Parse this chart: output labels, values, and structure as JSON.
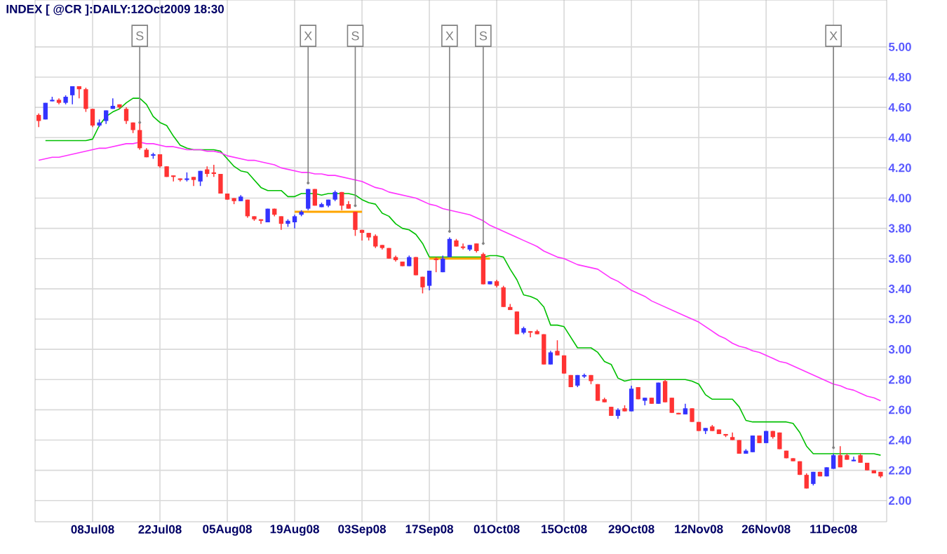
{
  "chart_data": {
    "type": "candlestick",
    "title": "INDEX [ @CR ]:DAILY:12Oct2009 18:30",
    "categories": [
      null,
      null,
      null,
      null,
      null,
      null,
      null,
      null,
      "08Jul08",
      null,
      null,
      null,
      null,
      null,
      null,
      null,
      null,
      null,
      "22Jul08",
      null,
      null,
      null,
      null,
      null,
      null,
      null,
      null,
      null,
      "05Aug08",
      null,
      null,
      null,
      null,
      null,
      null,
      null,
      null,
      null,
      "19Aug08",
      null,
      null,
      null,
      null,
      null,
      null,
      null,
      null,
      null,
      "03Sep08",
      null,
      null,
      null,
      null,
      null,
      null,
      null,
      null,
      null,
      "17Sep08",
      null,
      null,
      null,
      null,
      null,
      null,
      null,
      null,
      null,
      "01Oct08",
      null,
      null,
      null,
      null,
      null,
      null,
      null,
      null,
      null,
      "15Oct08",
      null,
      null,
      null,
      null,
      null,
      null,
      null,
      null,
      null,
      "29Oct08",
      null,
      null,
      null,
      null,
      null,
      null,
      null,
      null,
      null,
      "12Nov08",
      null,
      null,
      null,
      null,
      null,
      null,
      null,
      null,
      null,
      "26Nov08",
      null,
      null,
      null,
      null,
      null,
      null,
      null,
      null,
      null,
      "11Dec08",
      null,
      null,
      null,
      null,
      null,
      null,
      null
    ],
    "ohlc": [
      [
        4.55,
        4.56,
        4.47,
        4.51
      ],
      [
        4.52,
        4.63,
        4.52,
        4.63
      ],
      [
        4.64,
        4.67,
        4.64,
        4.65
      ],
      [
        4.65,
        4.66,
        4.62,
        4.63
      ],
      [
        4.63,
        4.68,
        4.62,
        4.67
      ],
      [
        4.68,
        4.74,
        4.62,
        4.74
      ],
      [
        4.74,
        4.74,
        4.66,
        4.72
      ],
      [
        4.72,
        4.73,
        4.57,
        4.59
      ],
      [
        4.59,
        4.59,
        4.47,
        4.48
      ],
      [
        4.48,
        4.52,
        4.47,
        4.5
      ],
      [
        4.51,
        4.58,
        4.49,
        4.58
      ],
      [
        4.59,
        4.66,
        4.59,
        4.61
      ],
      [
        4.62,
        4.62,
        4.59,
        4.6
      ],
      [
        4.59,
        4.6,
        4.49,
        4.51
      ],
      [
        4.5,
        4.5,
        4.43,
        4.45
      ],
      [
        4.45,
        4.5,
        4.32,
        4.33
      ],
      [
        4.32,
        4.33,
        4.27,
        4.27
      ],
      [
        4.28,
        4.3,
        4.26,
        4.29
      ],
      [
        4.29,
        4.29,
        4.2,
        4.21
      ],
      [
        4.21,
        4.21,
        4.14,
        4.14
      ],
      [
        4.15,
        4.15,
        4.11,
        4.14
      ],
      [
        4.13,
        4.13,
        4.11,
        4.12
      ],
      [
        4.12,
        4.17,
        4.11,
        4.13
      ],
      [
        4.14,
        4.14,
        4.08,
        4.12
      ],
      [
        4.11,
        4.18,
        4.08,
        4.18
      ],
      [
        4.19,
        4.21,
        4.14,
        4.16
      ],
      [
        4.17,
        4.22,
        4.14,
        4.16
      ],
      [
        4.16,
        4.16,
        4.03,
        4.03
      ],
      [
        4.03,
        4.03,
        3.99,
        3.99
      ],
      [
        4.0,
        4.0,
        3.96,
        3.98
      ],
      [
        3.98,
        4.02,
        3.98,
        4.01
      ],
      [
        3.99,
        3.99,
        3.87,
        3.88
      ],
      [
        3.88,
        3.88,
        3.85,
        3.86
      ],
      [
        3.86,
        3.86,
        3.83,
        3.85
      ],
      [
        3.84,
        3.93,
        3.84,
        3.93
      ],
      [
        3.93,
        3.93,
        3.88,
        3.89
      ],
      [
        3.88,
        3.88,
        3.79,
        3.83
      ],
      [
        3.83,
        3.86,
        3.81,
        3.85
      ],
      [
        3.84,
        3.89,
        3.8,
        3.88
      ],
      [
        3.89,
        3.92,
        3.88,
        3.91
      ],
      [
        3.93,
        4.06,
        3.92,
        4.06
      ],
      [
        4.06,
        4.06,
        3.95,
        3.95
      ],
      [
        3.94,
        3.97,
        3.94,
        3.96
      ],
      [
        3.95,
        3.99,
        3.94,
        3.99
      ],
      [
        3.99,
        4.05,
        3.98,
        4.04
      ],
      [
        4.04,
        4.04,
        3.92,
        3.95
      ],
      [
        3.96,
        3.98,
        3.93,
        3.93
      ],
      [
        3.91,
        3.91,
        3.75,
        3.79
      ],
      [
        3.79,
        3.79,
        3.72,
        3.77
      ],
      [
        3.77,
        3.77,
        3.72,
        3.74
      ],
      [
        3.75,
        3.76,
        3.67,
        3.68
      ],
      [
        3.69,
        3.69,
        3.66,
        3.67
      ],
      [
        3.67,
        3.67,
        3.6,
        3.6
      ],
      [
        3.61,
        3.62,
        3.58,
        3.59
      ],
      [
        3.58,
        3.58,
        3.55,
        3.55
      ],
      [
        3.55,
        3.62,
        3.55,
        3.61
      ],
      [
        3.61,
        3.61,
        3.49,
        3.49
      ],
      [
        3.48,
        3.48,
        3.37,
        3.41
      ],
      [
        3.42,
        3.52,
        3.39,
        3.52
      ],
      [
        3.6,
        3.61,
        3.51,
        3.59
      ],
      [
        3.51,
        3.62,
        3.51,
        3.6
      ],
      [
        3.61,
        3.74,
        3.61,
        3.73
      ],
      [
        3.72,
        3.73,
        3.68,
        3.68
      ],
      [
        3.68,
        3.7,
        3.66,
        3.67
      ],
      [
        3.66,
        3.69,
        3.65,
        3.69
      ],
      [
        3.7,
        3.7,
        3.64,
        3.65
      ],
      [
        3.63,
        3.64,
        3.43,
        3.43
      ],
      [
        3.43,
        3.45,
        3.43,
        3.45
      ],
      [
        3.45,
        3.46,
        3.41,
        3.42
      ],
      [
        3.41,
        3.42,
        3.28,
        3.28
      ],
      [
        3.28,
        3.3,
        3.26,
        3.26
      ],
      [
        3.25,
        3.25,
        3.1,
        3.1
      ],
      [
        3.11,
        3.15,
        3.1,
        3.14
      ],
      [
        3.12,
        3.12,
        3.08,
        3.11
      ],
      [
        3.12,
        3.13,
        3.1,
        3.1
      ],
      [
        3.1,
        3.1,
        2.9,
        2.9
      ],
      [
        2.9,
        2.99,
        2.9,
        2.98
      ],
      [
        2.99,
        3.06,
        2.96,
        2.96
      ],
      [
        2.96,
        2.96,
        2.84,
        2.84
      ],
      [
        2.83,
        2.83,
        2.75,
        2.75
      ],
      [
        2.76,
        2.83,
        2.75,
        2.83
      ],
      [
        2.82,
        2.84,
        2.81,
        2.83
      ],
      [
        2.83,
        2.83,
        2.77,
        2.79
      ],
      [
        2.77,
        2.77,
        2.66,
        2.66
      ],
      [
        2.67,
        2.68,
        2.65,
        2.65
      ],
      [
        2.62,
        2.62,
        2.56,
        2.56
      ],
      [
        2.56,
        2.61,
        2.54,
        2.6
      ],
      [
        2.61,
        2.63,
        2.59,
        2.59
      ],
      [
        2.59,
        2.76,
        2.59,
        2.74
      ],
      [
        2.75,
        2.75,
        2.67,
        2.67
      ],
      [
        2.66,
        2.68,
        2.63,
        2.68
      ],
      [
        2.68,
        2.68,
        2.64,
        2.64
      ],
      [
        2.64,
        2.78,
        2.64,
        2.78
      ],
      [
        2.79,
        2.8,
        2.65,
        2.65
      ],
      [
        2.68,
        2.68,
        2.58,
        2.58
      ],
      [
        2.58,
        2.58,
        2.57,
        2.57
      ],
      [
        2.57,
        2.64,
        2.57,
        2.61
      ],
      [
        2.61,
        2.61,
        2.52,
        2.52
      ],
      [
        2.52,
        2.52,
        2.46,
        2.46
      ],
      [
        2.46,
        2.48,
        2.44,
        2.48
      ],
      [
        2.49,
        2.5,
        2.46,
        2.46
      ],
      [
        2.47,
        2.47,
        2.44,
        2.44
      ],
      [
        2.44,
        2.44,
        2.42,
        2.43
      ],
      [
        2.42,
        2.45,
        2.4,
        2.4
      ],
      [
        2.4,
        2.4,
        2.31,
        2.31
      ],
      [
        2.31,
        2.34,
        2.31,
        2.33
      ],
      [
        2.32,
        2.43,
        2.32,
        2.43
      ],
      [
        2.43,
        2.43,
        2.38,
        2.38
      ],
      [
        2.38,
        2.46,
        2.38,
        2.46
      ],
      [
        2.46,
        2.46,
        2.41,
        2.42
      ],
      [
        2.45,
        2.45,
        2.34,
        2.34
      ],
      [
        2.33,
        2.33,
        2.28,
        2.28
      ],
      [
        2.28,
        2.28,
        2.26,
        2.26
      ],
      [
        2.26,
        2.26,
        2.17,
        2.17
      ],
      [
        2.17,
        2.18,
        2.08,
        2.08
      ],
      [
        2.11,
        2.19,
        2.1,
        2.19
      ],
      [
        2.19,
        2.19,
        2.16,
        2.16
      ],
      [
        2.16,
        2.22,
        2.16,
        2.22
      ],
      [
        2.21,
        2.31,
        2.21,
        2.3
      ],
      [
        2.3,
        2.36,
        2.22,
        2.22
      ],
      [
        2.3,
        2.31,
        2.27,
        2.27
      ],
      [
        2.26,
        2.29,
        2.26,
        2.27
      ],
      [
        2.3,
        2.31,
        2.25,
        2.25
      ],
      [
        2.25,
        2.25,
        2.2,
        2.2
      ],
      [
        2.2,
        2.2,
        2.18,
        2.18
      ],
      [
        2.19,
        2.19,
        2.15,
        2.16
      ]
    ],
    "colors": [
      "#ff3333",
      "#3333ff",
      "#3333ff",
      "#ff3333",
      "#3333ff",
      "#3333ff",
      "#ff3333",
      "#ff3333",
      "#ff3333",
      "#3333ff",
      "#3333ff",
      "#3333ff",
      "#ff3333",
      "#ff3333",
      "#ff3333",
      "#ff3333",
      "#ff3333",
      "#3333ff",
      "#ff3333",
      "#ff3333",
      "#ff3333",
      "#ff3333",
      "#3333ff",
      "#ff3333",
      "#3333ff",
      "#ff3333",
      "#ff3333",
      "#ff3333",
      "#ff3333",
      "#ff3333",
      "#3333ff",
      "#ff3333",
      "#ff3333",
      "#ff3333",
      "#3333ff",
      "#ff3333",
      "#ff3333",
      "#3333ff",
      "#3333ff",
      "#3333ff",
      "#3333ff",
      "#ff3333",
      "#3333ff",
      "#3333ff",
      "#3333ff",
      "#ff3333",
      "#ff3333",
      "#ff3333",
      "#ff3333",
      "#ff3333",
      "#ff3333",
      "#ff3333",
      "#ff3333",
      "#ff3333",
      "#ff3333",
      "#3333ff",
      "#ff3333",
      "#ff3333",
      "#3333ff",
      "#ff3333",
      "#3333ff",
      "#3333ff",
      "#ff3333",
      "#ff3333",
      "#3333ff",
      "#ff3333",
      "#ff3333",
      "#3333ff",
      "#ff3333",
      "#ff3333",
      "#ff3333",
      "#ff3333",
      "#3333ff",
      "#ff3333",
      "#ff3333",
      "#ff3333",
      "#3333ff",
      "#ff3333",
      "#ff3333",
      "#ff3333",
      "#3333ff",
      "#3333ff",
      "#ff3333",
      "#ff3333",
      "#ff3333",
      "#ff3333",
      "#3333ff",
      "#ff3333",
      "#3333ff",
      "#ff3333",
      "#3333ff",
      "#ff3333",
      "#3333ff",
      "#ff3333",
      "#ff3333",
      "#ff3333",
      "#3333ff",
      "#ff3333",
      "#ff3333",
      "#3333ff",
      "#ff3333",
      "#ff3333",
      "#ff3333",
      "#ff3333",
      "#ff3333",
      "#3333ff",
      "#3333ff",
      "#ff3333",
      "#3333ff",
      "#ff3333",
      "#ff3333",
      "#ff3333",
      "#ff3333",
      "#ff3333",
      "#ff3333",
      "#3333ff",
      "#ff3333",
      "#3333ff",
      "#3333ff",
      "#ff3333",
      "#ff3333",
      "#3333ff",
      "#ff3333",
      "#ff3333",
      "#ff3333",
      "#ff3333"
    ],
    "series": [
      {
        "type": "line",
        "color": "#00c000",
        "values": [
          null,
          4.38,
          4.38,
          4.38,
          4.38,
          4.38,
          4.38,
          4.38,
          4.39,
          4.48,
          4.54,
          4.57,
          4.59,
          4.63,
          4.66,
          4.66,
          4.62,
          4.54,
          4.5,
          4.48,
          4.41,
          4.35,
          4.33,
          4.32,
          4.32,
          4.32,
          4.32,
          4.31,
          4.26,
          4.21,
          4.18,
          4.17,
          4.12,
          4.07,
          4.05,
          4.05,
          4.05,
          4.01,
          4.01,
          4.03,
          4.03,
          4.03,
          4.02,
          4.03,
          4.03,
          4.03,
          4.03,
          4.02,
          3.99,
          3.97,
          3.96,
          3.9,
          3.88,
          3.83,
          3.8,
          3.79,
          3.76,
          3.7,
          3.61,
          3.61,
          3.61,
          3.61,
          3.61,
          3.61,
          3.61,
          3.61,
          3.61,
          3.62,
          3.62,
          3.61,
          3.53,
          3.46,
          3.36,
          3.35,
          3.33,
          3.28,
          3.16,
          3.16,
          3.15,
          3.08,
          3.01,
          3.01,
          3.01,
          2.98,
          2.92,
          2.9,
          2.81,
          2.79,
          2.8,
          2.8,
          2.8,
          2.8,
          2.8,
          2.8,
          2.8,
          2.8,
          2.8,
          2.79,
          2.77,
          2.7,
          2.67,
          2.67,
          2.67,
          2.67,
          2.62,
          2.53,
          2.52,
          2.52,
          2.52,
          2.52,
          2.52,
          2.52,
          2.51,
          2.45,
          2.36,
          2.31,
          2.31,
          2.31,
          2.31,
          2.31,
          2.31,
          2.31,
          2.31,
          2.31,
          2.31,
          2.3
        ]
      },
      {
        "type": "line",
        "color": "#ff33ff",
        "values": [
          4.25,
          4.26,
          4.27,
          4.27,
          4.28,
          4.29,
          4.3,
          4.31,
          4.32,
          4.33,
          4.33,
          4.34,
          4.35,
          4.36,
          4.36,
          4.37,
          4.36,
          4.36,
          4.35,
          4.34,
          4.34,
          4.33,
          4.32,
          4.32,
          4.32,
          4.31,
          4.31,
          4.3,
          4.28,
          4.27,
          4.26,
          4.25,
          4.25,
          4.24,
          4.23,
          4.22,
          4.2,
          4.19,
          4.18,
          4.17,
          4.17,
          4.16,
          4.16,
          4.15,
          4.15,
          4.14,
          4.13,
          4.12,
          4.11,
          4.09,
          4.07,
          4.06,
          4.04,
          4.03,
          4.02,
          4.01,
          4.0,
          3.98,
          3.96,
          3.95,
          3.93,
          3.92,
          3.91,
          3.9,
          3.89,
          3.87,
          3.85,
          3.82,
          3.8,
          3.78,
          3.76,
          3.74,
          3.72,
          3.7,
          3.68,
          3.65,
          3.63,
          3.61,
          3.6,
          3.58,
          3.56,
          3.55,
          3.54,
          3.53,
          3.5,
          3.47,
          3.45,
          3.42,
          3.39,
          3.37,
          3.35,
          3.32,
          3.3,
          3.28,
          3.26,
          3.24,
          3.22,
          3.2,
          3.18,
          3.15,
          3.12,
          3.09,
          3.07,
          3.04,
          3.02,
          3.01,
          2.99,
          2.98,
          2.96,
          2.94,
          2.92,
          2.91,
          2.89,
          2.87,
          2.85,
          2.83,
          2.81,
          2.79,
          2.77,
          2.76,
          2.74,
          2.73,
          2.71,
          2.69,
          2.68,
          2.66
        ]
      },
      {
        "type": "line",
        "color": "#ffa500",
        "values": [
          null,
          null,
          null,
          null,
          null,
          null,
          null,
          null,
          null,
          null,
          null,
          null,
          null,
          null,
          null,
          null,
          null,
          null,
          null,
          null,
          null,
          null,
          null,
          null,
          null,
          null,
          null,
          null,
          null,
          null,
          null,
          null,
          null,
          null,
          null,
          null,
          null,
          null,
          3.91,
          3.91,
          3.91,
          3.91,
          3.91,
          3.91,
          3.91,
          3.91,
          3.91,
          3.91,
          3.91,
          null,
          null,
          null,
          null,
          null,
          null,
          null,
          null,
          null,
          3.6,
          3.6,
          3.6,
          3.6,
          3.6,
          3.6,
          3.6,
          3.6,
          3.6,
          3.6,
          null,
          null,
          null,
          null,
          null,
          null,
          null,
          null,
          null,
          null,
          null,
          null,
          null,
          null,
          null,
          null,
          null,
          null,
          null,
          null,
          null,
          null,
          null,
          null,
          null,
          null,
          null,
          null,
          null,
          null,
          null,
          null,
          null,
          null,
          null,
          null,
          null,
          null,
          null,
          null,
          null,
          null,
          null,
          null,
          null,
          null,
          null,
          null,
          null,
          null,
          null,
          null,
          null,
          null,
          null,
          null,
          null,
          null
        ]
      },
      {
        "type": "scatter",
        "color": "#808080",
        "values": [
          null,
          null,
          null,
          null,
          null,
          null,
          null,
          null,
          null,
          null,
          null,
          null,
          null,
          null,
          null,
          4.5,
          null,
          null,
          null,
          null,
          null,
          null,
          null,
          null,
          null,
          null,
          null,
          null,
          null,
          null,
          null,
          null,
          null,
          null,
          null,
          null,
          null,
          null,
          null,
          null,
          4.1,
          null,
          null,
          null,
          null,
          null,
          null,
          3.95,
          null,
          null,
          null,
          null,
          null,
          null,
          null,
          null,
          null,
          null,
          null,
          null,
          null,
          3.78,
          null,
          null,
          null,
          null,
          3.7,
          null,
          null,
          null,
          null,
          null,
          null,
          null,
          null,
          null,
          null,
          null,
          null,
          null,
          null,
          null,
          null,
          null,
          null,
          null,
          null,
          null,
          null,
          null,
          null,
          null,
          null,
          null,
          null,
          null,
          null,
          null,
          null,
          null,
          null,
          null,
          null,
          null,
          null,
          null,
          null,
          null,
          null,
          null,
          null,
          null,
          null,
          null,
          null,
          null,
          null,
          null,
          2.35,
          null,
          null,
          null,
          null,
          null,
          null,
          null
        ],
        "value_labels": [
          null,
          null,
          null,
          null,
          null,
          null,
          null,
          null,
          null,
          null,
          null,
          null,
          null,
          null,
          null,
          "S",
          null,
          null,
          null,
          null,
          null,
          null,
          null,
          null,
          null,
          null,
          null,
          null,
          null,
          null,
          null,
          null,
          null,
          null,
          null,
          null,
          null,
          null,
          null,
          null,
          "X",
          null,
          null,
          null,
          null,
          null,
          null,
          "S",
          null,
          null,
          null,
          null,
          null,
          null,
          null,
          null,
          null,
          null,
          null,
          null,
          null,
          "X",
          null,
          null,
          null,
          null,
          "S",
          null,
          null,
          null,
          null,
          null,
          null,
          null,
          null,
          null,
          null,
          null,
          null,
          null,
          null,
          null,
          null,
          null,
          null,
          null,
          null,
          null,
          null,
          null,
          null,
          null,
          null,
          null,
          null,
          null,
          null,
          null,
          null,
          null,
          null,
          null,
          null,
          null,
          null,
          null,
          null,
          null,
          null,
          null,
          null,
          null,
          null,
          null,
          null,
          null,
          null,
          null,
          "X",
          null,
          null,
          null,
          null,
          null,
          null,
          null
        ]
      }
    ],
    "ylim": [
      1.86,
      5.31
    ],
    "yticks": [
      {
        "value": 2,
        "label": "2.00"
      },
      {
        "value": 2.2,
        "label": "2.20"
      },
      {
        "value": 2.4,
        "label": "2.40"
      },
      {
        "value": 2.6,
        "label": "2.60"
      },
      {
        "value": 2.8,
        "label": "2.80"
      },
      {
        "value": 3,
        "label": "3.00"
      },
      {
        "value": 3.2,
        "label": "3.20"
      },
      {
        "value": 3.4,
        "label": "3.40"
      },
      {
        "value": 3.6,
        "label": "3.60"
      },
      {
        "value": 3.8,
        "label": "3.80"
      },
      {
        "value": 4,
        "label": "4.00"
      },
      {
        "value": 4.2,
        "label": "4.20"
      },
      {
        "value": 4.4,
        "label": "4.40"
      },
      {
        "value": 4.6,
        "label": "4.60"
      },
      {
        "value": 4.8,
        "label": "4.80"
      },
      {
        "value": 5,
        "label": "5.00"
      }
    ],
    "grid": true
  }
}
